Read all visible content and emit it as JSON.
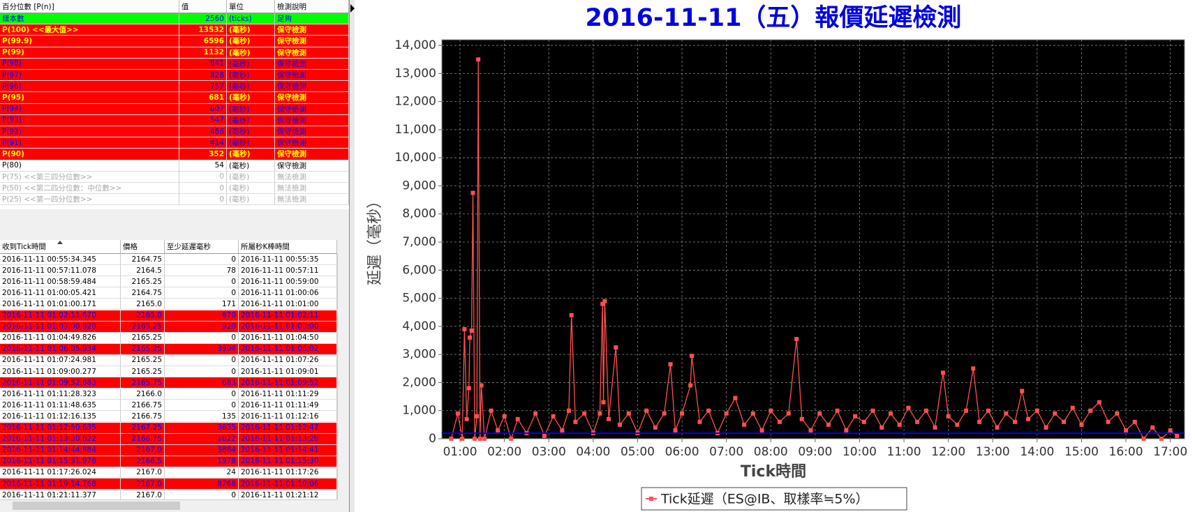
{
  "percentile_table": {
    "columns": [
      "百分位數 [P(n)]",
      "值",
      "單位",
      "檢測說明"
    ],
    "rows": [
      {
        "cells": [
          "樣本數",
          "2560",
          "(ticks)",
          "足夠"
        ],
        "style": "green"
      },
      {
        "cells": [
          "P(100)  <<最大值>>",
          "13532",
          "(毫秒)",
          "保守檢測"
        ],
        "style": "red-yellow"
      },
      {
        "cells": [
          "P(99.9)",
          "6596",
          "(毫秒)",
          "保守檢測"
        ],
        "style": "red-yellow"
      },
      {
        "cells": [
          "P(99)",
          "1132",
          "(毫秒)",
          "保守檢測"
        ],
        "style": "red-yellow"
      },
      {
        "cells": [
          "P(98)",
          "941",
          "(毫秒)",
          "保守檢測"
        ],
        "style": "red-blue"
      },
      {
        "cells": [
          "P(97)",
          "828",
          "(毫秒)",
          "保守檢測"
        ],
        "style": "red-blue"
      },
      {
        "cells": [
          "P(96)",
          "757",
          "(毫秒)",
          "保守檢測"
        ],
        "style": "red-blue"
      },
      {
        "cells": [
          "P(95)",
          "681",
          "(毫秒)",
          "保守檢測"
        ],
        "style": "red-yellow"
      },
      {
        "cells": [
          "P(94)",
          "607",
          "(毫秒)",
          "保守檢測"
        ],
        "style": "red-blue"
      },
      {
        "cells": [
          "P(93)",
          "547",
          "(毫秒)",
          "保守檢測"
        ],
        "style": "red-blue"
      },
      {
        "cells": [
          "P(92)",
          "486",
          "(毫秒)",
          "保守檢測"
        ],
        "style": "red-blue"
      },
      {
        "cells": [
          "P(91)",
          "414",
          "(毫秒)",
          "保守檢測"
        ],
        "style": "red-blue"
      },
      {
        "cells": [
          "P(90)",
          "352",
          "(毫秒)",
          "保守檢測"
        ],
        "style": "red-yellow"
      },
      {
        "cells": [
          "P(80)",
          "54",
          "(毫秒)",
          "保守檢測"
        ],
        "style": "white"
      },
      {
        "cells": [
          "P(75)  <<第三四分位數>>",
          "0",
          "(毫秒)",
          "無法檢測"
        ],
        "style": "gray"
      },
      {
        "cells": [
          "P(50)  <<第二四分位數：中位數>>",
          "0",
          "(毫秒)",
          "無法檢測"
        ],
        "style": "gray"
      },
      {
        "cells": [
          "P(25)  <<第一四分位數>>",
          "0",
          "(毫秒)",
          "無法檢測"
        ],
        "style": "gray"
      }
    ]
  },
  "tick_table": {
    "columns": [
      "收到Tick時間",
      "價格",
      "至少延遲毫秒",
      "所屬秒K棒時間"
    ],
    "rows": [
      {
        "cells": [
          "2016-11-11 00:55:34.345",
          "2164.75",
          "0",
          "2016-11-11 00:55:35"
        ],
        "style": "white"
      },
      {
        "cells": [
          "2016-11-11 00:57:11.078",
          "2164.5",
          "78",
          "2016-11-11 00:57:11"
        ],
        "style": "white"
      },
      {
        "cells": [
          "2016-11-11 00:58:59.484",
          "2165.25",
          "0",
          "2016-11-11 00:59:00"
        ],
        "style": "white"
      },
      {
        "cells": [
          "2016-11-11 01:00:05.421",
          "2164.75",
          "0",
          "2016-11-11 01:00:06"
        ],
        "style": "white"
      },
      {
        "cells": [
          "2016-11-11 01:01:00.171",
          "2165.0",
          "171",
          "2016-11-11 01:01:00"
        ],
        "style": "white"
      },
      {
        "cells": [
          "2016-11-11 01:02:11.670",
          "2165.0",
          "670",
          "2016-11-11 01:02:11"
        ],
        "style": "red-blue"
      },
      {
        "cells": [
          "2016-11-11 01:03:00.920",
          "2165.25",
          "920",
          "2016-11-11 01:03:00"
        ],
        "style": "red-blue"
      },
      {
        "cells": [
          "2016-11-11 01:04:49.826",
          "2165.25",
          "0",
          "2016-11-11 01:04:50"
        ],
        "style": "white"
      },
      {
        "cells": [
          "2016-11-11 01:06:05.934",
          "2165.25",
          "3904",
          "2016-11-11 01:06:02"
        ],
        "style": "red-blue"
      },
      {
        "cells": [
          "2016-11-11 01:07:24.981",
          "2165.25",
          "0",
          "2016-11-11 01:07:26"
        ],
        "style": "white"
      },
      {
        "cells": [
          "2016-11-11 01:09:00.277",
          "2165.25",
          "0",
          "2016-11-11 01:09:01"
        ],
        "style": "white"
      },
      {
        "cells": [
          "2016-11-11 01:09:52.683",
          "2165.75",
          "683",
          "2016-11-11 01:09:52"
        ],
        "style": "red-blue"
      },
      {
        "cells": [
          "2016-11-11 01:11:28.323",
          "2166.0",
          "0",
          "2016-11-11 01:11:29"
        ],
        "style": "white"
      },
      {
        "cells": [
          "2016-11-11 01:11:48.635",
          "2166.75",
          "0",
          "2016-11-11 01:11:49"
        ],
        "style": "white"
      },
      {
        "cells": [
          "2016-11-11 01:12:16.135",
          "2166.75",
          "135",
          "2016-11-11 01:12:16"
        ],
        "style": "white"
      },
      {
        "cells": [
          "2016-11-11 01:12:50.635",
          "2167.25",
          "3635",
          "2016-11-11 01:12:47"
        ],
        "style": "red-blue"
      },
      {
        "cells": [
          "2016-11-11 01:13:30.822",
          "2166.75",
          "1822",
          "2016-11-11 01:13:29"
        ],
        "style": "red-blue"
      },
      {
        "cells": [
          "2016-11-11 01:14:44.884",
          "2167.0",
          "3884",
          "2016-11-11 01:14:41"
        ],
        "style": "red-blue"
      },
      {
        "cells": [
          "2016-11-11 01:15:31.978",
          "2166.5",
          "1978",
          "2016-11-11 01:15:30"
        ],
        "style": "red-blue"
      },
      {
        "cells": [
          "2016-11-11 01:17:26.024",
          "2167.0",
          "24",
          "2016-11-11 01:17:26"
        ],
        "style": "white"
      },
      {
        "cells": [
          "2016-11-11 01:19:14.768",
          "2167.0",
          "8768",
          "2016-11-11 01:19:06"
        ],
        "style": "red-blue"
      },
      {
        "cells": [
          "2016-11-11 01:21:11.377",
          "2167.0",
          "0",
          "2016-11-11 01:21:12"
        ],
        "style": "white"
      }
    ]
  },
  "chart_data": {
    "type": "line",
    "title": "2016-11-11（五）報價延遲檢測",
    "xlabel": "Tick時間",
    "ylabel": "延遲（毫秒）",
    "x": [
      0.8,
      0.95,
      1.05,
      1.1,
      1.15,
      1.2,
      1.22,
      1.26,
      1.29,
      1.33,
      1.38,
      1.41,
      1.45,
      1.48,
      1.55,
      1.7,
      1.85,
      2.0,
      2.15,
      2.3,
      2.5,
      2.7,
      2.9,
      3.1,
      3.3,
      3.45,
      3.51,
      3.6,
      3.8,
      4.0,
      4.15,
      4.21,
      4.23,
      4.26,
      4.35,
      4.51,
      4.6,
      4.8,
      5.0,
      5.2,
      5.4,
      5.6,
      5.74,
      5.85,
      6.0,
      6.19,
      6.22,
      6.4,
      6.6,
      6.8,
      7.0,
      7.2,
      7.4,
      7.6,
      7.8,
      8.0,
      8.2,
      8.4,
      8.58,
      8.7,
      8.9,
      9.1,
      9.3,
      9.5,
      9.7,
      9.9,
      10.1,
      10.3,
      10.5,
      10.7,
      10.9,
      11.1,
      11.3,
      11.5,
      11.7,
      11.88,
      12.0,
      12.2,
      12.4,
      12.56,
      12.7,
      12.9,
      13.1,
      13.3,
      13.5,
      13.66,
      13.8,
      14.0,
      14.2,
      14.4,
      14.6,
      14.8,
      15.0,
      15.2,
      15.4,
      15.6,
      15.8,
      16.0,
      16.2,
      16.4,
      16.6,
      16.8,
      17.0,
      17.15
    ],
    "series": [
      {
        "name": "Tick延遲（ES@IB、取樣率≒5%）",
        "color": "#ff5050",
        "values": [
          0,
          900,
          0,
          3900,
          700,
          1800,
          3600,
          3850,
          8750,
          0,
          800,
          13500,
          0,
          1900,
          0,
          1000,
          300,
          800,
          0,
          700,
          200,
          900,
          100,
          800,
          300,
          1000,
          4400,
          600,
          900,
          200,
          900,
          4800,
          1300,
          4900,
          700,
          3250,
          500,
          900,
          200,
          1000,
          400,
          900,
          2650,
          300,
          900,
          1900,
          2950,
          600,
          1000,
          200,
          900,
          1450,
          500,
          900,
          300,
          1000,
          600,
          900,
          3550,
          700,
          300,
          900,
          500,
          1000,
          300,
          800,
          600,
          1000,
          400,
          900,
          500,
          1100,
          600,
          1000,
          400,
          2350,
          800,
          500,
          1000,
          2500,
          600,
          1000,
          400,
          900,
          600,
          1700,
          700,
          1000,
          400,
          900,
          600,
          1100,
          500,
          1000,
          1300,
          600,
          900,
          300,
          600,
          0,
          400,
          0,
          300,
          100
        ]
      }
    ],
    "reference_line": {
      "value": 200,
      "color": "#0000ff"
    },
    "xlim": [
      0.59,
      17.32
    ],
    "xticks": [
      {
        "value": 1,
        "label": "01:00"
      },
      {
        "value": 2,
        "label": "02:00"
      },
      {
        "value": 3,
        "label": "03:00"
      },
      {
        "value": 4,
        "label": "04:00"
      },
      {
        "value": 5,
        "label": "05:00"
      },
      {
        "value": 6,
        "label": "06:00"
      },
      {
        "value": 7,
        "label": "07:00"
      },
      {
        "value": 8,
        "label": "08:00"
      },
      {
        "value": 9,
        "label": "09:00"
      },
      {
        "value": 10,
        "label": "10:00"
      },
      {
        "value": 11,
        "label": "11:00"
      },
      {
        "value": 12,
        "label": "12:00"
      },
      {
        "value": 13,
        "label": "13:00"
      },
      {
        "value": 14,
        "label": "14:00"
      },
      {
        "value": 15,
        "label": "15:00"
      },
      {
        "value": 16,
        "label": "16:00"
      },
      {
        "value": 17,
        "label": "17:00"
      }
    ],
    "ylim": [
      0,
      14200
    ],
    "yticks": [
      0,
      {
        "value": 1000,
        "label": "1,000"
      },
      {
        "value": 2000,
        "label": "2,000"
      },
      {
        "value": 3000,
        "label": "3,000"
      },
      {
        "value": 4000,
        "label": "4,000"
      },
      {
        "value": 5000,
        "label": "5,000"
      },
      {
        "value": 6000,
        "label": "6,000"
      },
      {
        "value": 7000,
        "label": "7,000"
      },
      {
        "value": 8000,
        "label": "8,000"
      },
      {
        "value": 9000,
        "label": "9,000"
      },
      {
        "value": 10000,
        "label": "10,000"
      },
      {
        "value": 11000,
        "label": "11,000"
      },
      {
        "value": 12000,
        "label": "12,000"
      },
      {
        "value": 13000,
        "label": "13,000"
      },
      {
        "value": 14000,
        "label": "14,000"
      }
    ],
    "grid": true,
    "legend": "bottom"
  }
}
